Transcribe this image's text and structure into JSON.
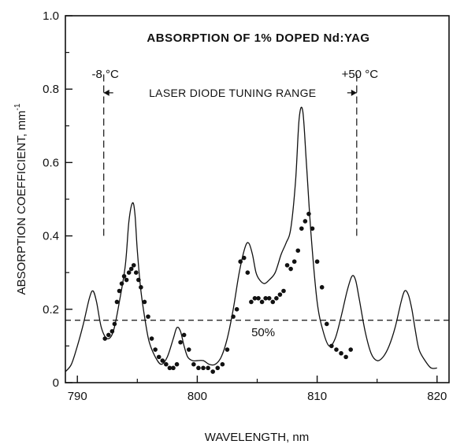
{
  "chart_data": {
    "type": "line",
    "title": "ABSORPTION OF 1% DOPED Nd:YAG",
    "xlabel": "WAVELENGTH, nm",
    "ylabel": "ABSORPTION COEFFICIENT, mm",
    "ylabel_superscript": "-1",
    "xlim": [
      789,
      821
    ],
    "ylim": [
      0,
      1.0
    ],
    "x_ticks": [
      790,
      800,
      810,
      820
    ],
    "x_tick_labels": [
      "790",
      "800",
      "810",
      "820"
    ],
    "y_ticks": [
      0,
      0.2,
      0.4,
      0.6,
      0.8,
      1.0
    ],
    "y_tick_labels": [
      "0",
      "0.2",
      "0.4",
      "0.6",
      "0.8",
      "1.0"
    ],
    "grid": false,
    "series": [
      {
        "style": "solid-line",
        "x": [
          789.0,
          789.5,
          790.0,
          790.5,
          791.0,
          791.3,
          791.6,
          792.0,
          792.5,
          793.0,
          793.5,
          794.0,
          794.3,
          794.6,
          794.8,
          795.0,
          795.3,
          795.7,
          796.0,
          796.5,
          797.0,
          797.5,
          798.0,
          798.3,
          798.6,
          798.9,
          799.2,
          799.6,
          800.0,
          800.5,
          801.0,
          801.5,
          802.0,
          802.5,
          803.0,
          803.5,
          804.0,
          804.3,
          804.6,
          804.9,
          805.2,
          805.6,
          806.0,
          806.5,
          807.0,
          807.4,
          807.8,
          808.2,
          808.5,
          808.8,
          809.1,
          809.5,
          810.0,
          810.5,
          811.0,
          811.5,
          812.0,
          812.5,
          812.9,
          813.2,
          813.5,
          814.0,
          814.5,
          815.0,
          815.5,
          816.0,
          816.5,
          817.0,
          817.3,
          817.6,
          817.9,
          818.2,
          818.5,
          819.0,
          819.5,
          820.0
        ],
        "y": [
          0.03,
          0.05,
          0.1,
          0.16,
          0.23,
          0.25,
          0.22,
          0.15,
          0.12,
          0.14,
          0.22,
          0.32,
          0.44,
          0.49,
          0.46,
          0.36,
          0.25,
          0.16,
          0.11,
          0.07,
          0.05,
          0.07,
          0.12,
          0.15,
          0.14,
          0.1,
          0.07,
          0.06,
          0.06,
          0.06,
          0.05,
          0.05,
          0.07,
          0.12,
          0.2,
          0.3,
          0.37,
          0.38,
          0.35,
          0.3,
          0.28,
          0.27,
          0.28,
          0.3,
          0.35,
          0.38,
          0.42,
          0.55,
          0.72,
          0.74,
          0.6,
          0.4,
          0.22,
          0.14,
          0.1,
          0.12,
          0.18,
          0.25,
          0.29,
          0.28,
          0.23,
          0.14,
          0.08,
          0.06,
          0.07,
          0.1,
          0.15,
          0.22,
          0.25,
          0.24,
          0.2,
          0.14,
          0.09,
          0.06,
          0.04,
          0.04
        ]
      },
      {
        "style": "dots",
        "x": [
          792.3,
          792.6,
          792.9,
          793.1,
          793.3,
          793.5,
          793.7,
          793.9,
          794.1,
          794.3,
          794.5,
          794.7,
          794.9,
          795.1,
          795.3,
          795.6,
          795.9,
          796.2,
          796.5,
          796.8,
          797.1,
          797.4,
          797.7,
          798.0,
          798.3,
          798.6,
          798.9,
          799.3,
          799.7,
          800.1,
          800.5,
          800.9,
          801.3,
          801.7,
          802.1,
          802.5,
          803.0,
          803.3,
          803.6,
          803.9,
          804.2,
          804.5,
          804.8,
          805.1,
          805.4,
          805.7,
          806.0,
          806.3,
          806.6,
          806.9,
          807.2,
          807.5,
          807.8,
          808.1,
          808.4,
          808.7,
          809.0,
          809.3,
          809.6,
          810.0,
          810.4,
          810.8,
          811.2,
          811.6,
          812.0,
          812.4,
          812.8
        ],
        "y": [
          0.12,
          0.13,
          0.14,
          0.16,
          0.22,
          0.25,
          0.27,
          0.29,
          0.28,
          0.3,
          0.31,
          0.32,
          0.3,
          0.28,
          0.26,
          0.22,
          0.18,
          0.12,
          0.09,
          0.07,
          0.06,
          0.05,
          0.04,
          0.04,
          0.05,
          0.11,
          0.13,
          0.09,
          0.05,
          0.04,
          0.04,
          0.04,
          0.03,
          0.04,
          0.05,
          0.09,
          0.18,
          0.2,
          0.33,
          0.34,
          0.3,
          0.22,
          0.23,
          0.23,
          0.22,
          0.23,
          0.23,
          0.22,
          0.23,
          0.24,
          0.25,
          0.32,
          0.31,
          0.33,
          0.36,
          0.42,
          0.44,
          0.46,
          0.42,
          0.33,
          0.26,
          0.16,
          0.1,
          0.09,
          0.08,
          0.07,
          0.09
        ]
      }
    ],
    "reference_line": {
      "y": 0.17,
      "style": "dashed",
      "label": "50%",
      "label_x": 805.5
    },
    "tuning_range": {
      "label": "LASER DIODE TUNING RANGE",
      "left_x": 792.2,
      "right_x": 813.3,
      "left_label": "-8 °C",
      "right_label": "+50 °C",
      "arrow_y": 0.79
    }
  }
}
